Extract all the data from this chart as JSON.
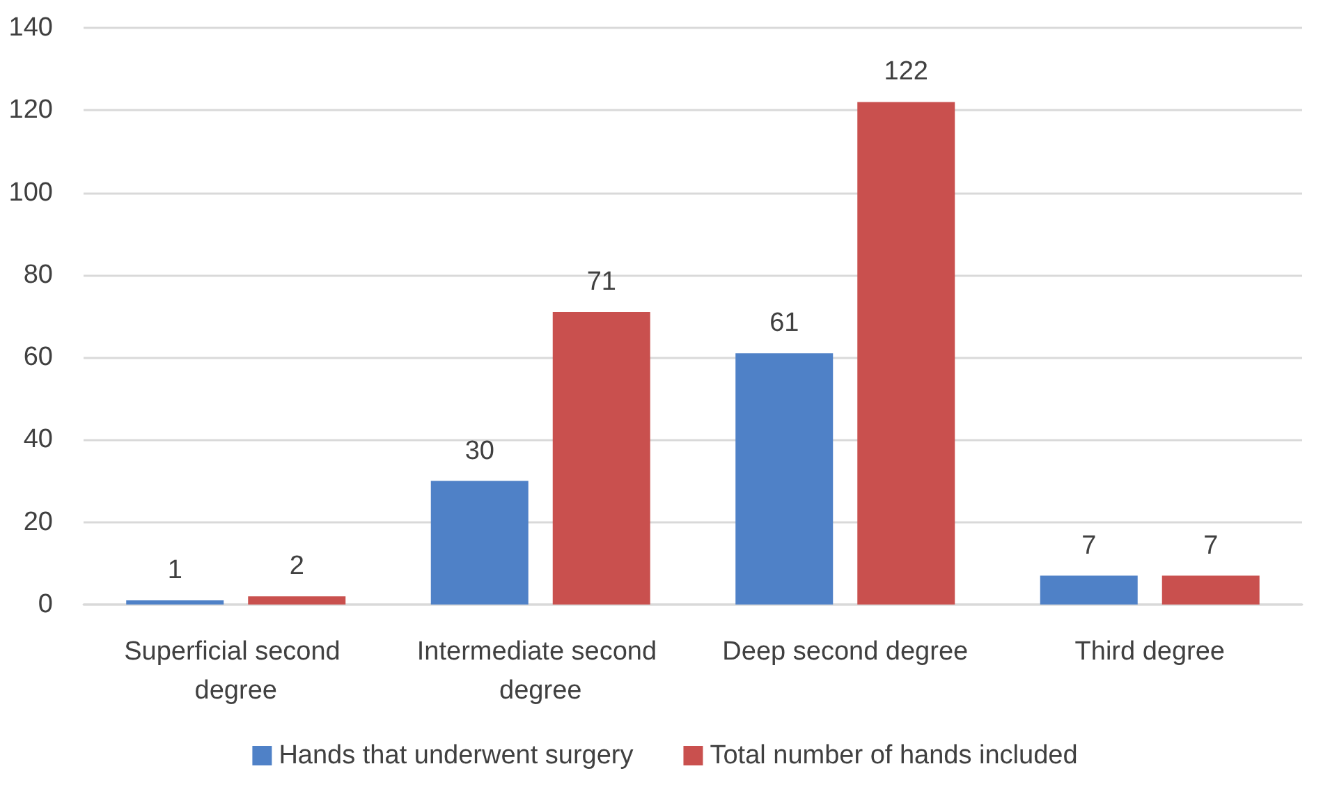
{
  "chart_data": {
    "type": "bar",
    "categories": [
      "Superficial second degree",
      "Intermediate second degree",
      "Deep second degree",
      "Third degree"
    ],
    "series": [
      {
        "name": "Hands that underwent surgery",
        "color": "#4f81c7",
        "values": [
          1,
          30,
          61,
          7
        ]
      },
      {
        "name": "Total number of hands included",
        "color": "#c9504e",
        "values": [
          2,
          71,
          122,
          7
        ]
      }
    ],
    "ylim": [
      0,
      140
    ],
    "yticks": [
      0,
      20,
      40,
      60,
      80,
      100,
      120,
      140
    ],
    "grid": "y",
    "legend": "bottom",
    "data_labels": true
  }
}
